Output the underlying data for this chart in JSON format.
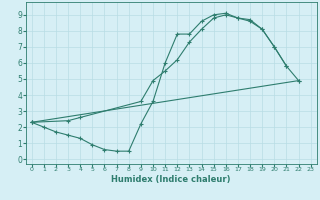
{
  "line1": {
    "x": [
      0,
      1,
      2,
      3,
      4,
      5,
      6,
      7,
      8,
      9,
      10,
      11,
      12,
      13,
      14,
      15,
      16,
      17,
      18,
      19,
      20,
      21
    ],
    "y": [
      2.3,
      2.0,
      1.7,
      1.5,
      1.3,
      0.9,
      0.6,
      0.5,
      0.5,
      2.2,
      3.6,
      6.0,
      7.8,
      7.8,
      8.6,
      9.0,
      9.1,
      8.8,
      8.7,
      8.1,
      7.0,
      5.8
    ]
  },
  "line2": {
    "x": [
      0,
      3,
      4,
      9,
      10,
      11,
      12,
      13,
      14,
      15,
      16,
      17,
      18,
      19,
      20,
      21,
      22
    ],
    "y": [
      2.3,
      2.4,
      2.6,
      3.6,
      4.9,
      5.5,
      6.2,
      7.3,
      8.1,
      8.8,
      9.0,
      8.8,
      8.6,
      8.1,
      7.0,
      5.8,
      4.9
    ]
  },
  "line3": {
    "x": [
      0,
      22
    ],
    "y": [
      2.3,
      4.9
    ]
  },
  "color": "#2e7d6e",
  "bg_color": "#d6eff5",
  "grid_color": "#b8dde5",
  "xlabel": "Humidex (Indice chaleur)",
  "xlim": [
    -0.5,
    23.5
  ],
  "ylim": [
    -0.3,
    9.8
  ],
  "xticks": [
    0,
    1,
    2,
    3,
    4,
    5,
    6,
    7,
    8,
    9,
    10,
    11,
    12,
    13,
    14,
    15,
    16,
    17,
    18,
    19,
    20,
    21,
    22,
    23
  ],
  "yticks": [
    0,
    1,
    2,
    3,
    4,
    5,
    6,
    7,
    8,
    9
  ]
}
